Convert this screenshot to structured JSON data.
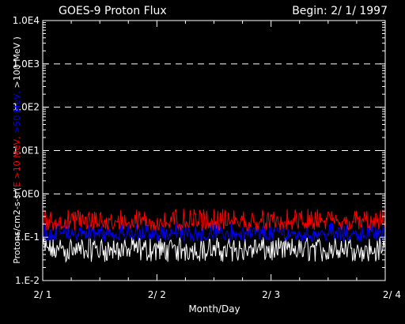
{
  "chart_data": {
    "type": "line",
    "title": "GOES-9 Proton Flux",
    "subtitle": "Begin: 2/ 1/ 1997",
    "xlabel": "Month/Day",
    "ylabel": {
      "prefix": "Protons/cm2-s-sr(",
      "parts": [
        {
          "text": "E >10 MeV, ",
          "color": "#ff0000"
        },
        {
          "text": ">50 MeV, ",
          "color": "#0000ff"
        },
        {
          "text": ">100 MeV )",
          "color": "#ffffff"
        }
      ]
    },
    "yscale": "log",
    "ylim": [
      0.01,
      10000
    ],
    "yticks": [
      {
        "value": 0.01,
        "label": "1.E-2"
      },
      {
        "value": 0.1,
        "label": "1.E-1"
      },
      {
        "value": 1,
        "label": "1.0E0"
      },
      {
        "value": 10,
        "label": "1.0E1"
      },
      {
        "value": 100,
        "label": "1.0E2"
      },
      {
        "value": 1000,
        "label": "1.0E3"
      },
      {
        "value": 10000,
        "label": "1.0E4"
      }
    ],
    "dashed_gridlines_at": [
      1,
      10,
      100,
      1000
    ],
    "xlim": [
      1,
      4
    ],
    "xticks": [
      {
        "value": 1,
        "label": "2/ 1"
      },
      {
        "value": 2,
        "label": "2/ 2"
      },
      {
        "value": 3,
        "label": "2/ 3"
      },
      {
        "value": 4,
        "label": "2/ 4"
      }
    ],
    "series": [
      {
        "name": "E >10 MeV",
        "color": "#ff0000",
        "range": [
          0.14,
          0.45
        ],
        "typical": 0.22
      },
      {
        "name": ">50 MeV",
        "color": "#0000ff",
        "range": [
          0.08,
          0.22
        ],
        "typical": 0.12
      },
      {
        "name": ">100 MeV",
        "color": "#ffffff",
        "range": [
          0.027,
          0.1
        ],
        "typical": 0.055
      }
    ]
  }
}
